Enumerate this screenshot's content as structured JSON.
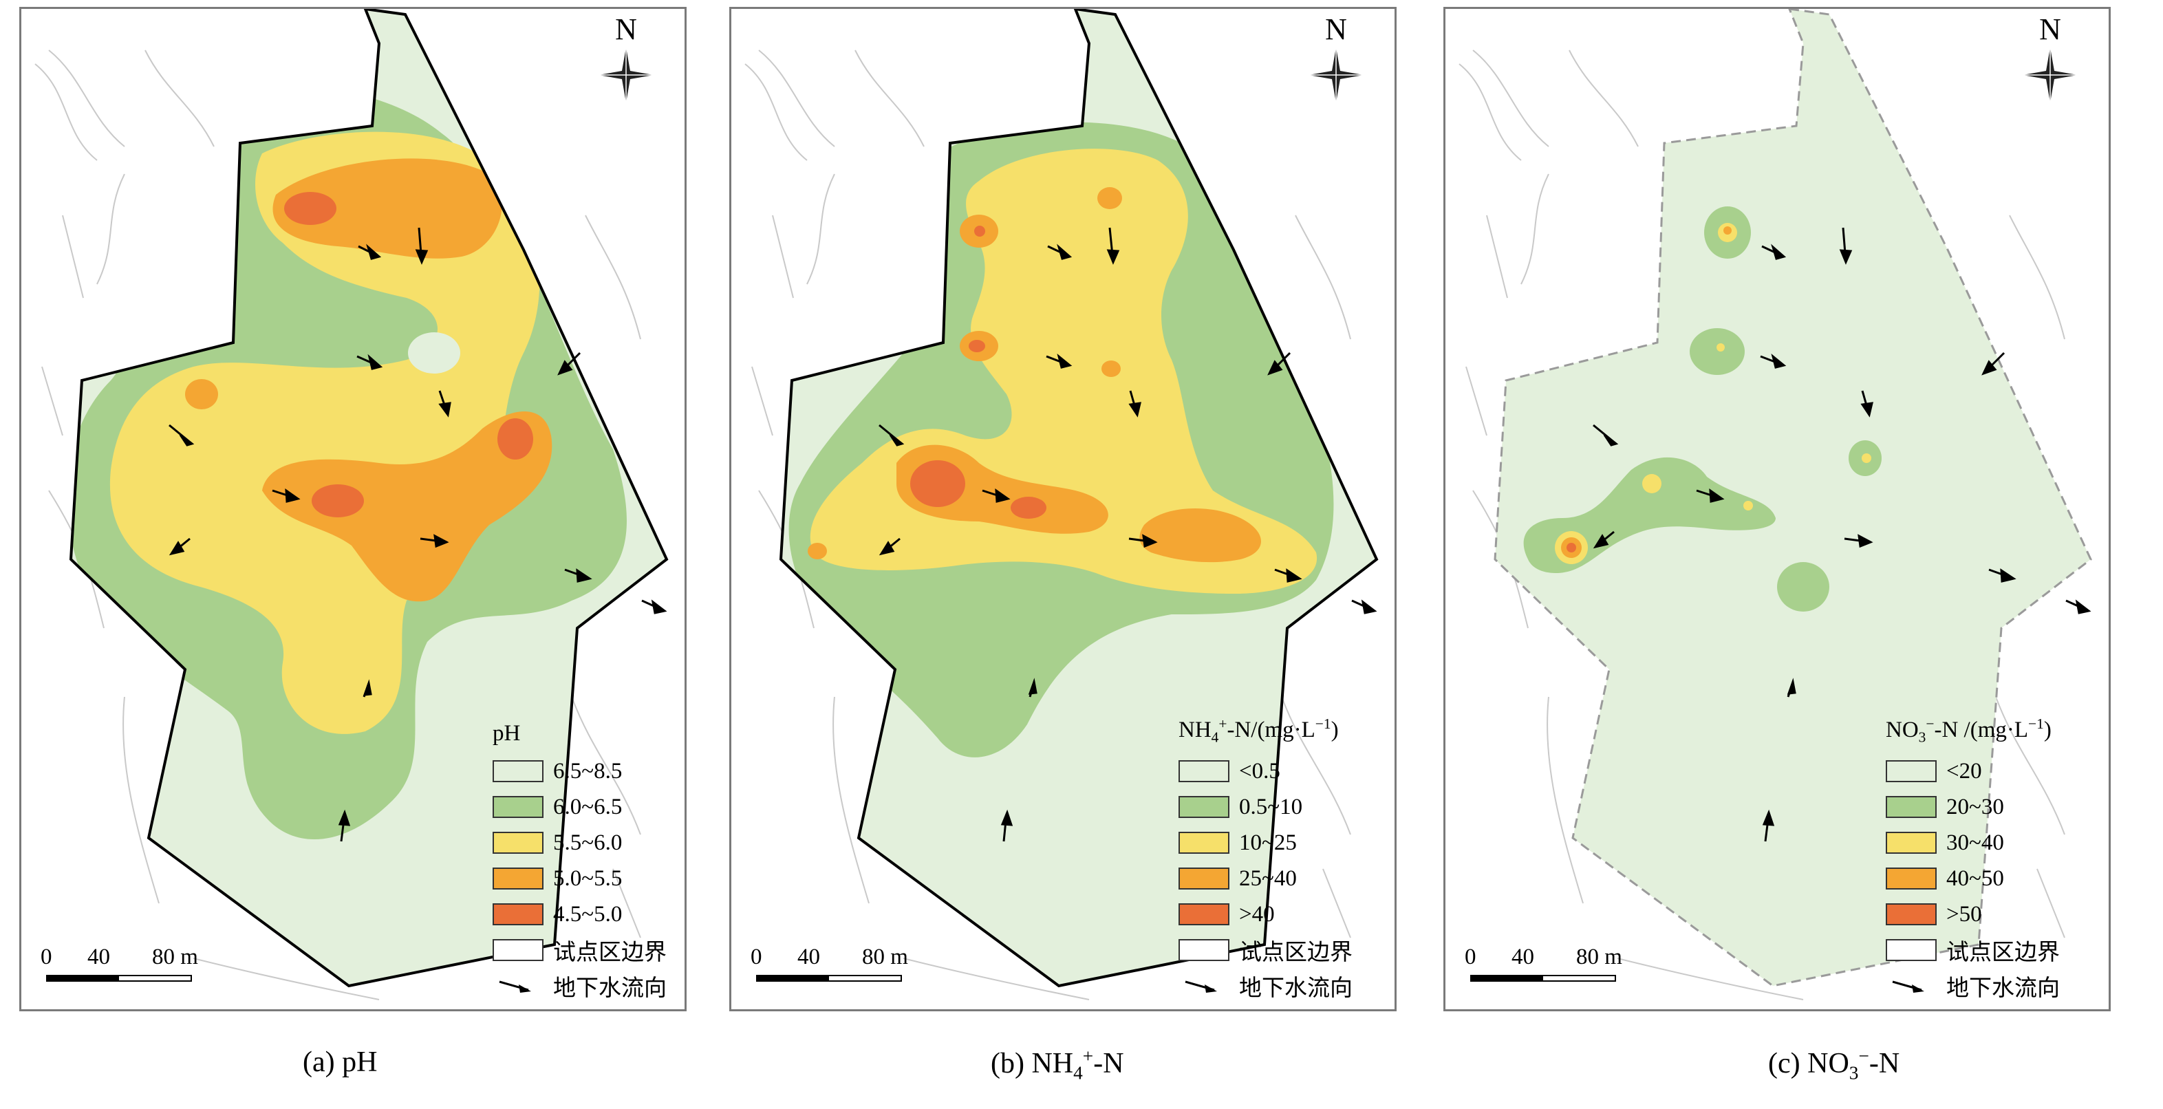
{
  "common": {
    "north_label": "N",
    "boundary_label": "试点区边界",
    "flow_label": "地下水流向",
    "scale": {
      "ticks": [
        "0",
        "40",
        "80 m"
      ]
    },
    "colors": {
      "class1": "#e3f0dc",
      "class2": "#a8d08d",
      "class3": "#f6e06a",
      "class4": "#f4a633",
      "class5": "#ea6f37",
      "boundary": "#000000",
      "frame": "#7a7a7a"
    }
  },
  "panels": [
    {
      "caption": "(a) pH",
      "legend_title": "pH",
      "classes": [
        "6.5~8.5",
        "6.0~6.5",
        "5.5~6.0",
        "5.0~5.5",
        "4.5~5.0"
      ]
    },
    {
      "caption": "(b) NH4+-N",
      "legend_title": "NH4+-N/(mg·L−1)",
      "classes": [
        "<0.5",
        "0.5~10",
        "10~25",
        "25~40",
        ">40"
      ]
    },
    {
      "caption": "(c) NO3−-N",
      "legend_title": "NO3−-N /(mg·L−1)",
      "classes": [
        "<20",
        "20~30",
        "30~40",
        "40~50",
        ">50"
      ]
    }
  ]
}
